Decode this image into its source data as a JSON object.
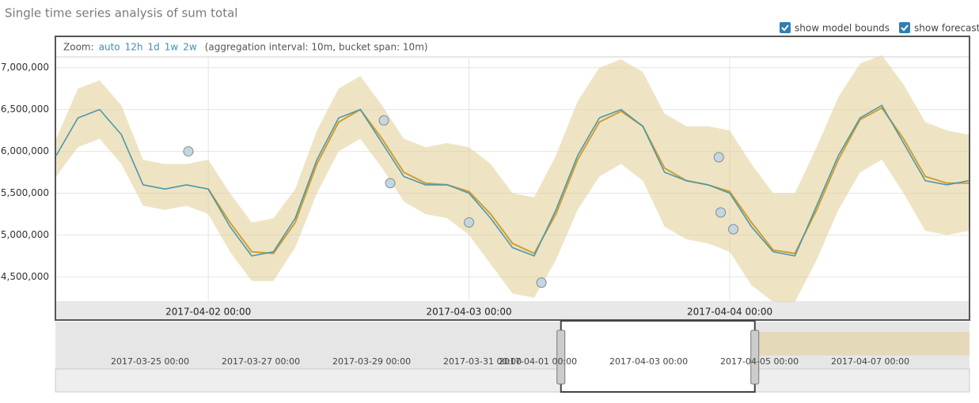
{
  "title": "Single time series analysis of sum total",
  "controls": {
    "show_model_bounds": "show model bounds",
    "show_forecast": "show forecast"
  },
  "zoom": {
    "label": "Zoom:",
    "options": [
      "auto",
      "12h",
      "1d",
      "1w",
      "2w"
    ],
    "info": "(aggregation interval: 10m, bucket span: 10m)"
  },
  "chart_data": {
    "type": "line",
    "x": [
      "2017-04-01 10:00",
      "2017-04-01 12:00",
      "2017-04-01 14:00",
      "2017-04-01 16:00",
      "2017-04-01 18:00",
      "2017-04-01 20:00",
      "2017-04-01 22:00",
      "2017-04-02 00:00",
      "2017-04-02 02:00",
      "2017-04-02 04:00",
      "2017-04-02 06:00",
      "2017-04-02 08:00",
      "2017-04-02 10:00",
      "2017-04-02 12:00",
      "2017-04-02 14:00",
      "2017-04-02 16:00",
      "2017-04-02 18:00",
      "2017-04-02 20:00",
      "2017-04-02 22:00",
      "2017-04-03 00:00",
      "2017-04-03 02:00",
      "2017-04-03 04:00",
      "2017-04-03 06:00",
      "2017-04-03 08:00",
      "2017-04-03 10:00",
      "2017-04-03 12:00",
      "2017-04-03 14:00",
      "2017-04-03 16:00",
      "2017-04-03 18:00",
      "2017-04-03 20:00",
      "2017-04-03 22:00",
      "2017-04-04 00:00",
      "2017-04-04 02:00",
      "2017-04-04 04:00",
      "2017-04-04 06:00",
      "2017-04-04 08:00",
      "2017-04-04 10:00",
      "2017-04-04 12:00",
      "2017-04-04 14:00",
      "2017-04-04 16:00",
      "2017-04-04 18:00",
      "2017-04-04 20:00",
      "2017-04-04 22:00"
    ],
    "series": [
      {
        "color": "#4a98ad",
        "values": [
          5950000,
          6400000,
          6500000,
          6200000,
          5600000,
          5550000,
          5600000,
          5550000,
          5100000,
          4750000,
          4800000,
          5200000,
          5900000,
          6400000,
          6500000,
          6100000,
          5700000,
          5600000,
          5600000,
          5500000,
          5200000,
          4850000,
          4750000,
          5300000,
          5950000,
          6400000,
          6500000,
          6300000,
          5750000,
          5650000,
          5600000,
          5500000,
          5100000,
          4800000,
          4750000,
          5350000,
          5950000,
          6400000,
          6550000,
          6100000,
          5650000,
          5600000,
          5650000
        ]
      },
      {
        "color": "#d09d2f",
        "values": [
          null,
          null,
          null,
          null,
          null,
          null,
          null,
          5550000,
          5150000,
          4800000,
          4780000,
          5150000,
          5850000,
          6350000,
          6500000,
          6150000,
          5750000,
          5620000,
          5600000,
          5520000,
          5250000,
          4900000,
          4780000,
          5250000,
          5900000,
          6350000,
          6480000,
          6300000,
          5800000,
          5650000,
          5600000,
          5520000,
          5150000,
          4820000,
          4780000,
          5300000,
          5900000,
          6380000,
          6520000,
          6150000,
          5700000,
          5620000,
          5620000
        ]
      }
    ],
    "bounds": {
      "color": "#e3d29c",
      "upper": [
        6150000,
        6750000,
        6850000,
        6550000,
        5900000,
        5850000,
        5850000,
        5900000,
        5500000,
        5150000,
        5200000,
        5550000,
        6250000,
        6750000,
        6900000,
        6550000,
        6150000,
        6050000,
        6100000,
        6050000,
        5850000,
        5500000,
        5450000,
        5950000,
        6600000,
        7000000,
        7100000,
        6950000,
        6450000,
        6300000,
        6300000,
        6250000,
        5850000,
        5500000,
        5500000,
        6050000,
        6650000,
        7050000,
        7150000,
        6800000,
        6350000,
        6250000,
        6200000
      ],
      "lower": [
        5700000,
        6050000,
        6150000,
        5850000,
        5350000,
        5300000,
        5350000,
        5250000,
        4800000,
        4450000,
        4450000,
        4850000,
        5500000,
        6000000,
        6150000,
        5800000,
        5400000,
        5250000,
        5200000,
        5000000,
        4650000,
        4300000,
        4250000,
        4700000,
        5300000,
        5700000,
        5850000,
        5650000,
        5100000,
        4950000,
        4900000,
        4800000,
        4400000,
        4200000,
        4200000,
        4700000,
        5300000,
        5750000,
        5900000,
        5500000,
        5050000,
        5000000,
        5050000
      ]
    },
    "anomalies": {
      "color": "#c3d7e3",
      "x": [
        "2017-04-01 22:10",
        "2017-04-02 16:10",
        "2017-04-02 16:45",
        "2017-04-03 00:00",
        "2017-04-03 06:40",
        "2017-04-03 23:00",
        "2017-04-03 23:10",
        "2017-04-04 00:20"
      ],
      "values": [
        6000000,
        6370000,
        5620000,
        5150000,
        4430000,
        5930000,
        5270000,
        5070000
      ]
    },
    "xlim": [
      "2017-04-01 10:00",
      "2017-04-04 22:00"
    ],
    "xticks": [
      "2017-04-02 00:00",
      "2017-04-03 00:00",
      "2017-04-04 00:00"
    ],
    "ylim": [
      4220000,
      7120000
    ],
    "yticks": [
      {
        "value": 4500000,
        "label": "4,500,000"
      },
      {
        "value": 5000000,
        "label": "5,000,000"
      },
      {
        "value": 5500000,
        "label": "5,500,000"
      },
      {
        "value": 6000000,
        "label": "6,000,000"
      },
      {
        "value": 6500000,
        "label": "6,500,000"
      },
      {
        "value": 7000000,
        "label": "7,000,000"
      }
    ],
    "grid": true,
    "context": {
      "xlim": [
        "2017-03-23 07:00",
        "2017-04-08 19:00"
      ],
      "xticks": [
        "2017-03-25 00:00",
        "2017-03-27 00:00",
        "2017-03-29 00:00",
        "2017-03-31 00:00",
        "2017-04-01 00:00",
        "2017-04-03 00:00",
        "2017-04-05 00:00",
        "2017-04-07 00:00"
      ]
    }
  }
}
